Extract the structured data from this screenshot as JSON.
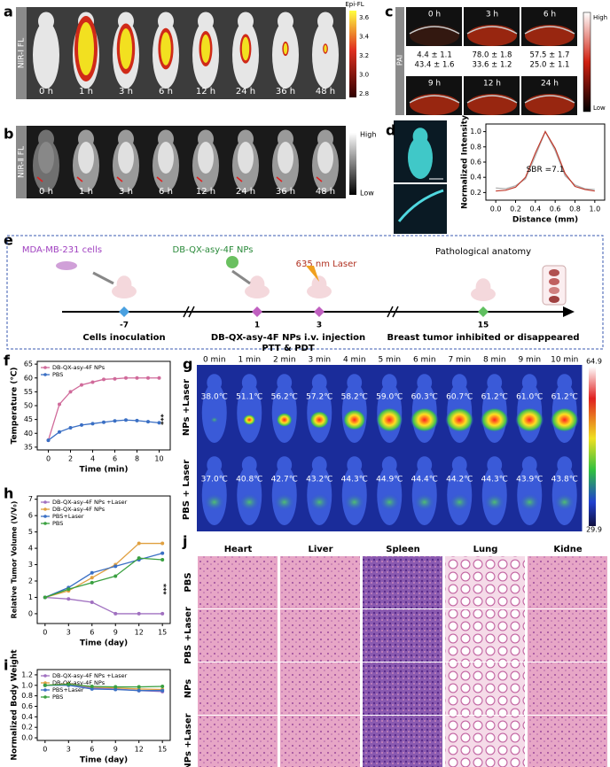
{
  "panel_a": {
    "label": "a",
    "row_label": "NIR-Ⅰ FL",
    "times": [
      "0 h",
      "1 h",
      "3 h",
      "6 h",
      "12 h",
      "24 h",
      "36 h",
      "48 h"
    ],
    "colorbar_title": "Epi-FL",
    "colorbar_ticks": [
      "3.6",
      "3.4",
      "3.2",
      "3.0",
      "2.8"
    ]
  },
  "panel_b": {
    "label": "b",
    "row_label": "NIR-Ⅱ FL",
    "times": [
      "0 h",
      "1 h",
      "3 h",
      "6 h",
      "12 h",
      "24 h",
      "36 h",
      "48 h"
    ],
    "colorbar_high": "High",
    "colorbar_low": "Low"
  },
  "panel_c": {
    "label": "c",
    "row_label": "PAI",
    "times": [
      "0 h",
      "3 h",
      "6 h",
      "9 h",
      "12 h",
      "24 h"
    ],
    "values": [
      [
        "4.4 ± 1.1",
        "43.4 ± 1.6"
      ],
      [
        "78.0 ± 1.8",
        "33.6 ± 1.2"
      ],
      [
        "57.5 ± 1.7",
        "25.0 ± 1.1"
      ]
    ],
    "colorbar_high": "High",
    "colorbar_low": "Low"
  },
  "panel_e": {
    "label": "e",
    "cells": "MDA-MB-231 cells",
    "nps": "DB-QX-asy-4F NPs",
    "laser": "635 nm Laser",
    "anatomy": "Pathological anatomy",
    "days": [
      "-7",
      "1",
      "3",
      "15"
    ],
    "step_inoculation": "Cells inoculation",
    "step_injection": "DB-QX-asy-4F NPs i.v. injection",
    "step_therapy": "PTT & PDT",
    "step_result": "Breast tumor inhibited or disappeared"
  },
  "panel_g": {
    "label": "g",
    "times": [
      "0 min",
      "1 min",
      "2 min",
      "3 min",
      "4 min",
      "5 min",
      "6 min",
      "7 min",
      "8 min",
      "9 min",
      "10 min"
    ],
    "rows": [
      {
        "label": "NPs +Laser",
        "temps": [
          "38.0℃",
          "51.1℃",
          "56.2℃",
          "57.2℃",
          "58.2℃",
          "59.0℃",
          "60.3℃",
          "60.7℃",
          "61.2℃",
          "61.0℃",
          "61.2℃"
        ]
      },
      {
        "label": "PBS + Laser",
        "temps": [
          "37.0℃",
          "40.8℃",
          "42.7℃",
          "43.2℃",
          "44.3℃",
          "44.9℃",
          "44.4℃",
          "44.2℃",
          "44.3℃",
          "43.9℃",
          "43.8℃"
        ]
      }
    ],
    "colorbar_max": "64.9",
    "colorbar_min": "29.9"
  },
  "panel_j": {
    "label": "j",
    "columns": [
      "Heart",
      "Liver",
      "Spleen",
      "Lung",
      "Kidne"
    ],
    "rows": [
      "PBS",
      "PBS +Laser",
      "NPs",
      "NPs +Laser"
    ]
  },
  "chart_data": [
    {
      "type": "line",
      "panel_label": "d",
      "xlabel": "Distance (mm)",
      "ylabel": "Normalized Intensity",
      "annotation": "SBR =7.1",
      "x": [
        0,
        0.1,
        0.2,
        0.3,
        0.4,
        0.5,
        0.6,
        0.7,
        0.8,
        0.9,
        1.0
      ],
      "series": [
        {
          "color": "#b0b0b0",
          "values": [
            0.26,
            0.25,
            0.29,
            0.38,
            0.68,
            1.0,
            0.75,
            0.42,
            0.3,
            0.25,
            0.24
          ]
        },
        {
          "color": "#c0392b",
          "values": [
            0.22,
            0.23,
            0.27,
            0.4,
            0.72,
            1.0,
            0.78,
            0.45,
            0.28,
            0.24,
            0.22
          ]
        }
      ],
      "xlim": [
        -0.1,
        1.1
      ],
      "xticks": [
        {
          "value": 0,
          "label": "0.0"
        },
        0.2,
        0.4,
        0.6,
        0.8,
        {
          "value": 1,
          "label": "1.0"
        }
      ],
      "ylim": [
        0.1,
        1.1
      ],
      "yticks": [
        0.2,
        0.4,
        0.6,
        0.8,
        {
          "value": 1,
          "label": "1.0"
        }
      ]
    },
    {
      "type": "line",
      "panel_label": "f",
      "xlabel": "Time (min)",
      "ylabel": "Temperature (℃)",
      "annotation": "***",
      "x": [
        0,
        1,
        2,
        3,
        4,
        5,
        6,
        7,
        8,
        9,
        10
      ],
      "series": [
        {
          "name": "DB-QX-asy-4F NPs",
          "color": "#d06a9a",
          "values": [
            37.5,
            50.5,
            55,
            57.5,
            58.5,
            59.5,
            59.7,
            60,
            60,
            60,
            60
          ]
        },
        {
          "name": "PBS",
          "color": "#3a6fc4",
          "values": [
            37.5,
            40.5,
            42,
            43,
            43.5,
            44,
            44.5,
            44.8,
            44.6,
            44.2,
            43.8
          ]
        }
      ],
      "xlim": [
        -1,
        11
      ],
      "xticks": [
        0,
        2,
        4,
        6,
        8,
        10
      ],
      "ylim": [
        34,
        66
      ],
      "yticks": [
        35,
        40,
        45,
        50,
        55,
        60,
        65
      ]
    },
    {
      "type": "line",
      "panel_label": "h",
      "xlabel": "Time (day)",
      "ylabel": "Relative Tumor Volume (V/V₀)",
      "annotation": "***",
      "x": [
        0,
        3,
        6,
        9,
        12,
        15
      ],
      "series": [
        {
          "name": "DB-QX-asy-4F NPs +Laser",
          "color": "#a070c0",
          "values": [
            1,
            0.9,
            0.7,
            0,
            0,
            0
          ]
        },
        {
          "name": "DB-QX-asy-4F NPs",
          "color": "#e0a040",
          "values": [
            1,
            1.4,
            2.2,
            3.0,
            4.3,
            4.3
          ]
        },
        {
          "name": "PBS+Laser",
          "color": "#3a6fc4",
          "values": [
            1,
            1.6,
            2.5,
            2.9,
            3.3,
            3.7
          ]
        },
        {
          "name": "PBS",
          "color": "#3aa040",
          "values": [
            1,
            1.5,
            1.9,
            2.3,
            3.4,
            3.3
          ]
        }
      ],
      "xlim": [
        -1,
        16
      ],
      "xticks": [
        0,
        3,
        6,
        9,
        12,
        15
      ],
      "ylim": [
        -0.6,
        7.2
      ],
      "yticks": [
        0,
        1,
        2,
        3,
        4,
        5,
        6,
        7
      ]
    },
    {
      "type": "line",
      "panel_label": "i",
      "xlabel": "Time (day)",
      "ylabel": "Normalized Body Weight",
      "x": [
        0,
        3,
        6,
        9,
        12,
        15
      ],
      "series": [
        {
          "name": "DB-QX-asy-4F NPs +Laser",
          "color": "#a070c0",
          "values": [
            1,
            1.02,
            0.95,
            0.93,
            0.9,
            0.88
          ]
        },
        {
          "name": "DB-QX-asy-4F NPs",
          "color": "#e0a040",
          "values": [
            1,
            1.03,
            0.97,
            0.95,
            0.93,
            0.92
          ]
        },
        {
          "name": "PBS+Laser",
          "color": "#3a6fc4",
          "values": [
            1,
            1.0,
            0.93,
            0.92,
            0.9,
            0.9
          ]
        },
        {
          "name": "PBS",
          "color": "#3aa040",
          "values": [
            1,
            1.02,
            0.98,
            0.97,
            0.97,
            0.98
          ]
        }
      ],
      "xlim": [
        -1,
        16
      ],
      "xticks": [
        0,
        3,
        6,
        9,
        12,
        15
      ],
      "ylim": [
        -0.05,
        1.3
      ],
      "yticks": [
        {
          "value": 0,
          "label": "0.0"
        },
        0.2,
        0.4,
        0.6,
        0.8,
        {
          "value": 1,
          "label": "1.0"
        },
        1.2
      ]
    }
  ]
}
